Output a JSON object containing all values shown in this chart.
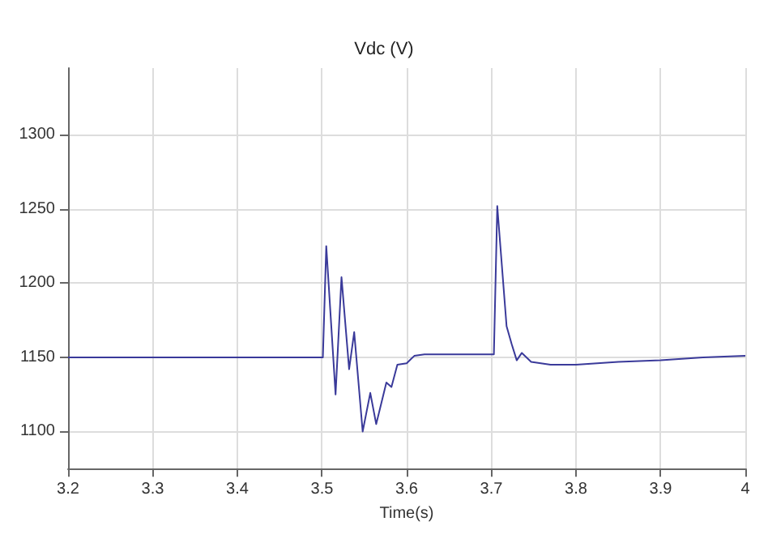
{
  "chart_data": {
    "type": "line",
    "title": "Vdc (V)",
    "xlabel": "Time(s)",
    "xlim": [
      3.2,
      4
    ],
    "xticks": [
      3.2,
      3.3,
      3.4,
      3.5,
      3.6,
      3.7,
      3.8,
      3.9,
      4
    ],
    "ylim": [
      1075,
      1345
    ],
    "yticks": [
      1100,
      1150,
      1200,
      1250,
      1300
    ],
    "grid": true,
    "line_style": "solid",
    "series": [
      {
        "color": "#3a3a9a",
        "x": [
          3.2,
          3.501,
          3.505,
          3.516,
          3.523,
          3.532,
          3.538,
          3.548,
          3.557,
          3.564,
          3.576,
          3.582,
          3.589,
          3.6,
          3.609,
          3.621,
          3.703,
          3.707,
          3.718,
          3.724,
          3.73,
          3.736,
          3.747,
          3.77,
          3.8,
          3.85,
          3.9,
          3.95,
          4
        ],
        "values": [
          1150,
          1150,
          1225,
          1125,
          1204,
          1142,
          1167,
          1100,
          1126,
          1105,
          1133,
          1130,
          1145,
          1146,
          1151,
          1152,
          1152,
          1252,
          1171,
          1159,
          1148,
          1153,
          1147,
          1145,
          1145,
          1147,
          1148,
          1150,
          1151
        ]
      }
    ]
  }
}
